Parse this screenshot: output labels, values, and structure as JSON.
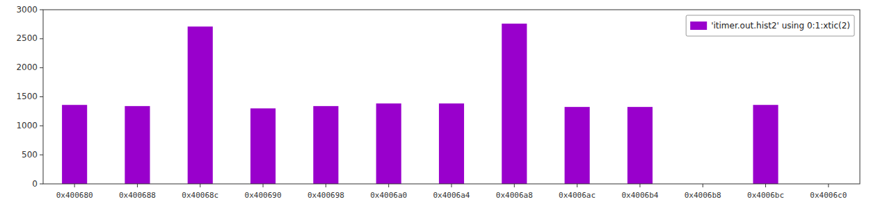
{
  "chart_data": {
    "type": "bar",
    "categories": [
      "0x400680",
      "0x400688",
      "0x40068c",
      "0x400690",
      "0x400698",
      "0x4006a0",
      "0x4006a4",
      "0x4006a8",
      "0x4006ac",
      "0x4006b4",
      "0x4006b8",
      "0x4006bc",
      "0x4006c0"
    ],
    "series": [
      {
        "name": "'itimer.out.hist2' using 0:1:xtic(2)",
        "color": "#9900cc",
        "values": [
          1360,
          1340,
          2710,
          1300,
          1340,
          1385,
          1385,
          2760,
          1325,
          1325,
          0,
          1360,
          0
        ]
      }
    ],
    "ylim": [
      0,
      3000
    ],
    "yticks": [
      0,
      500,
      1000,
      1500,
      2000,
      2500,
      3000
    ],
    "grid": false,
    "legend": "upper right"
  }
}
